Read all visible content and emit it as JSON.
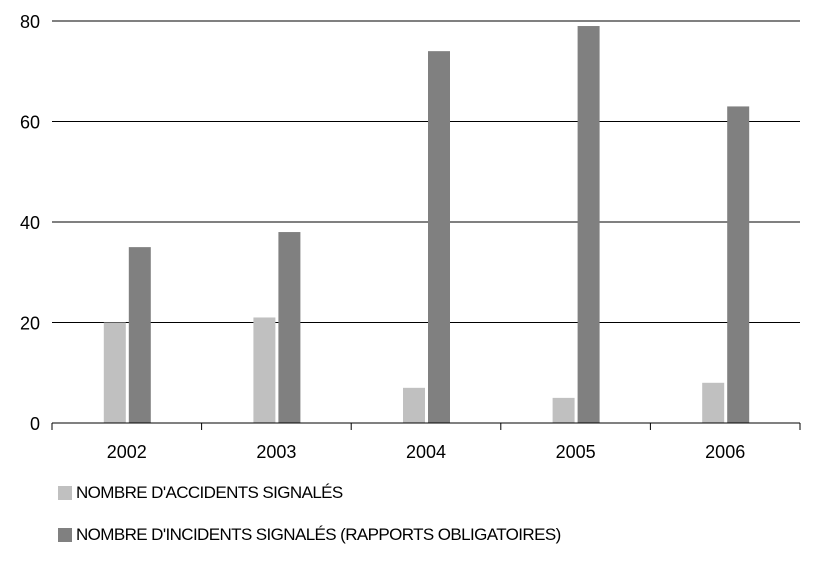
{
  "chart_data": {
    "type": "bar",
    "categories": [
      "2002",
      "2003",
      "2004",
      "2005",
      "2006"
    ],
    "series": [
      {
        "name": "NOMBRE D'ACCIDENTS SIGNALÉS",
        "values": [
          20,
          21,
          7,
          5,
          8
        ],
        "color": "#c0c0c0"
      },
      {
        "name": "NOMBRE D'INCIDENTS SIGNALÉS (RAPPORTS OBLIGATOIRES)",
        "values": [
          35,
          38,
          74,
          79,
          63
        ],
        "color": "#808080"
      }
    ],
    "ylim": [
      0,
      80
    ],
    "yticks": [
      "0",
      "20",
      "40",
      "60",
      "80"
    ],
    "grid": true,
    "legend_position": "bottom-left"
  }
}
